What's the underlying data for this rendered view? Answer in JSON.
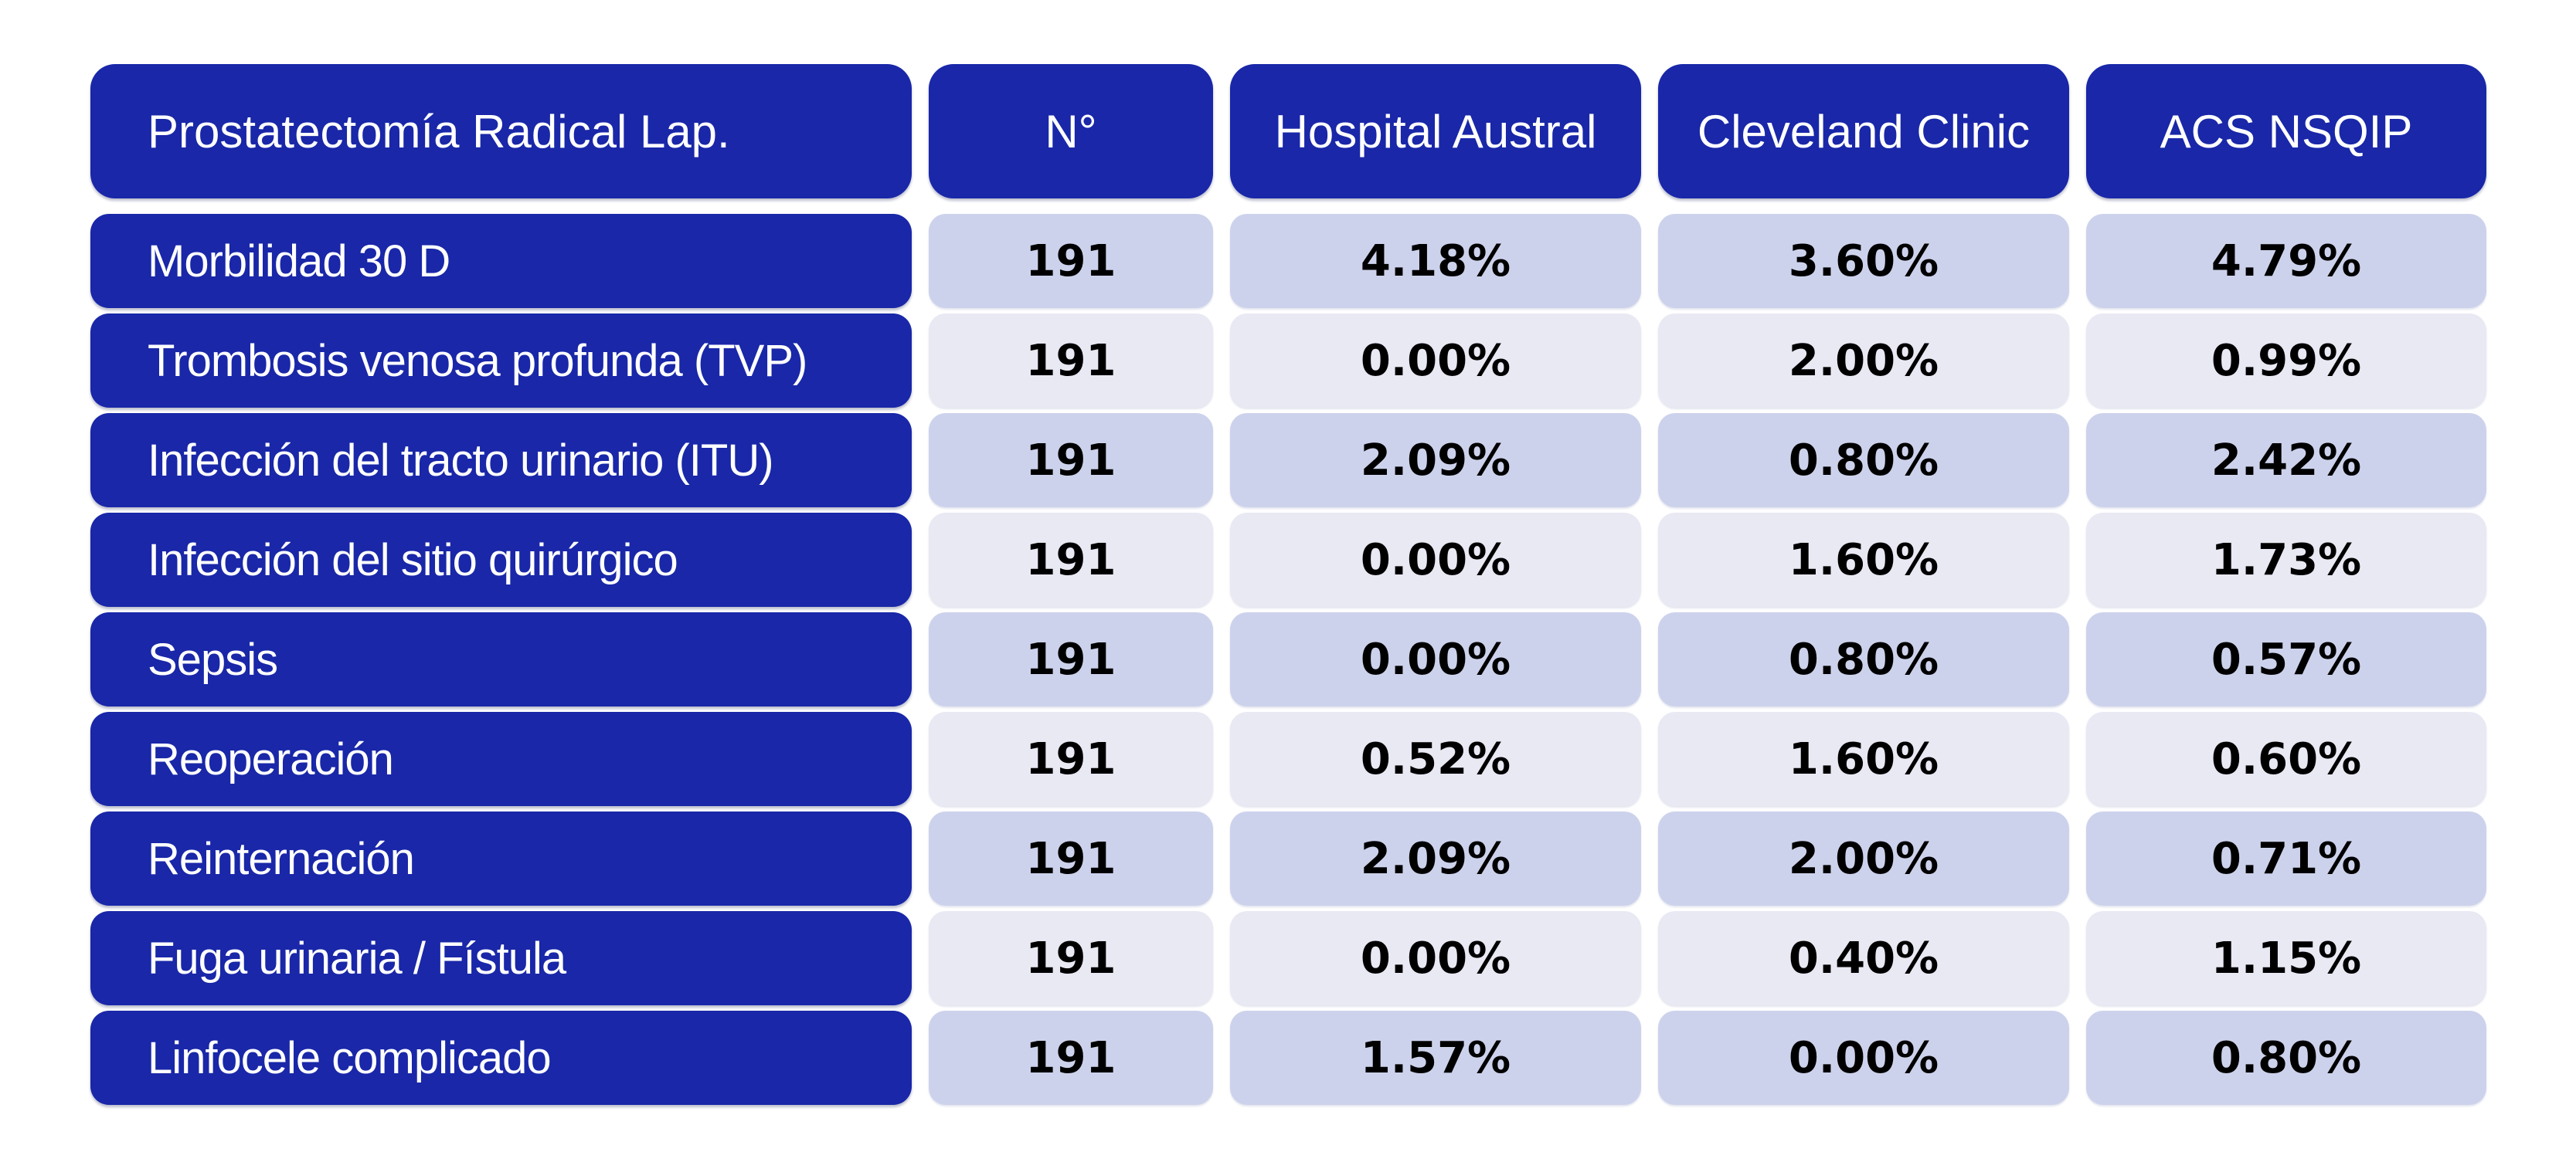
{
  "chart_data": {
    "type": "table",
    "title": "Prostatectomía Radical Lap.",
    "columns": [
      "Prostatectomía Radical Lap.",
      "N°",
      "Hospital Austral",
      "Cleveland Clinic",
      "ACS NSQIP"
    ],
    "rows": [
      [
        "Morbilidad 30 D",
        "191",
        "4.18%",
        "3.60%",
        "4.79%"
      ],
      [
        "Trombosis venosa profunda (TVP)",
        "191",
        "0.00%",
        "2.00%",
        "0.99%"
      ],
      [
        "Infección del tracto urinario (ITU)",
        "191",
        "2.09%",
        "0.80%",
        "2.42%"
      ],
      [
        "Infección del sitio quirúrgico",
        "191",
        "0.00%",
        "1.60%",
        "1.73%"
      ],
      [
        "Sepsis",
        "191",
        "0.00%",
        "0.80%",
        "0.57%"
      ],
      [
        "Reoperación",
        "191",
        "0.52%",
        "1.60%",
        "0.60%"
      ],
      [
        "Reinternación",
        "191",
        "2.09%",
        "2.00%",
        "0.71%"
      ],
      [
        "Fuga urinaria / Fístula",
        "191",
        "0.00%",
        "0.40%",
        "1.15%"
      ],
      [
        "Linfocele complicado",
        "191",
        "1.57%",
        "0.00%",
        "0.80%"
      ]
    ],
    "legend": "none",
    "grid": "off"
  },
  "colors": {
    "primary_blue": "#1927A8",
    "row_alt_dark": "#CDD2EC",
    "row_alt_light": "#E9E9F4",
    "background": "#FFFFFF",
    "header_text": "#FFFFFF",
    "number_text": "#000000"
  }
}
